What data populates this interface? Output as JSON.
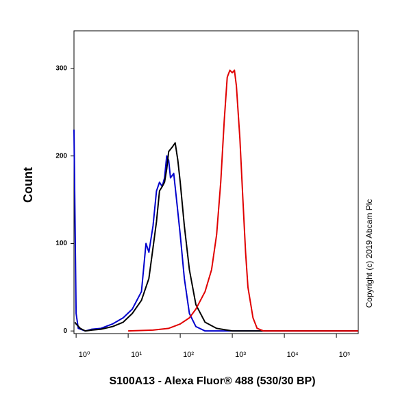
{
  "chart_data": {
    "type": "line",
    "x_label": "S100A13 - Alexa Fluor® 488 (530/30 BP)",
    "y_label": "Count",
    "annotation": "Copyright (c) 2019 Abcam Plc",
    "x_scale": "log",
    "xlim": [
      0.91,
      263000
    ],
    "ylim": [
      -3,
      343
    ],
    "xticks": [
      {
        "value": 1,
        "label": "10⁰"
      },
      {
        "value": 10,
        "label": "10¹"
      },
      {
        "value": 100,
        "label": "10²"
      },
      {
        "value": 1000,
        "label": "10³"
      },
      {
        "value": 10000,
        "label": "10⁴"
      },
      {
        "value": 100000,
        "label": "10⁵"
      }
    ],
    "yticks": [
      0,
      100,
      200,
      300
    ],
    "grid": false,
    "series": [
      {
        "color": "#0000cc",
        "x": [
          0.91,
          1,
          1.1,
          1.5,
          2,
          3,
          5,
          8,
          12,
          18,
          22,
          25,
          30,
          35,
          40,
          45,
          50,
          55,
          60,
          65,
          75,
          85,
          100,
          120,
          150,
          200,
          300,
          1000,
          263000
        ],
        "values": [
          230,
          20,
          3,
          0,
          2,
          3,
          8,
          15,
          25,
          45,
          100,
          90,
          120,
          160,
          170,
          165,
          175,
          200,
          195,
          175,
          180,
          150,
          110,
          60,
          20,
          5,
          0,
          0,
          0
        ]
      },
      {
        "color": "#000000",
        "x": [
          0.95,
          1,
          1.2,
          1.5,
          2,
          3,
          5,
          8,
          12,
          18,
          25,
          30,
          35,
          40,
          45,
          50,
          55,
          60,
          70,
          80,
          90,
          100,
          120,
          150,
          200,
          300,
          500,
          1000,
          263000
        ],
        "values": [
          10,
          8,
          3,
          0,
          1,
          2,
          5,
          10,
          20,
          35,
          60,
          95,
          125,
          160,
          165,
          170,
          185,
          205,
          210,
          215,
          195,
          170,
          120,
          70,
          30,
          10,
          3,
          0,
          0
        ]
      },
      {
        "color": "#e00000",
        "x": [
          10,
          30,
          60,
          100,
          150,
          200,
          300,
          400,
          500,
          600,
          700,
          800,
          900,
          1000,
          1100,
          1200,
          1400,
          1600,
          1800,
          2000,
          2500,
          3000,
          4000,
          263000
        ],
        "values": [
          0,
          1,
          3,
          8,
          15,
          25,
          45,
          70,
          110,
          170,
          240,
          290,
          298,
          295,
          298,
          280,
          220,
          150,
          90,
          50,
          15,
          3,
          0,
          0
        ]
      }
    ]
  }
}
